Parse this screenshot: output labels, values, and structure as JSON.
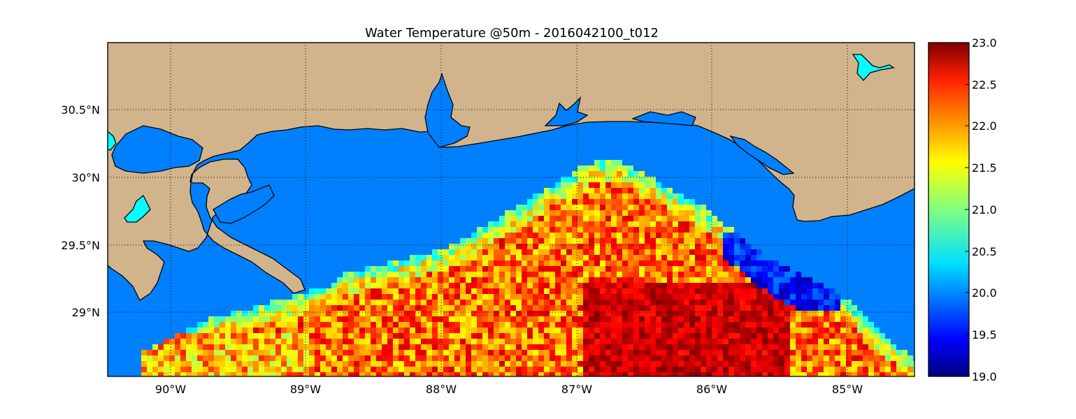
{
  "title": "Water Temperature @50m - 2016042100_t012",
  "lat_labels": [
    "30.5°N",
    "30°N",
    "29.5°N",
    "29°N"
  ],
  "lon_labels": [
    "90°W",
    "89°W",
    "88°W",
    "87°W",
    "86°W",
    "85°W"
  ],
  "colorbar": {
    "ticks": [
      "23.0",
      "22.5",
      "22.0",
      "21.5",
      "21.0",
      "20.5",
      "20.0",
      "19.5",
      "19.0"
    ],
    "min": 19.0,
    "max": 23.0,
    "colormap": "jet"
  },
  "colors": {
    "land": "#d2b48c",
    "water": "#0080ff",
    "lake": "#00ffff",
    "coastline": "#000000",
    "gridline": "#000000"
  }
}
